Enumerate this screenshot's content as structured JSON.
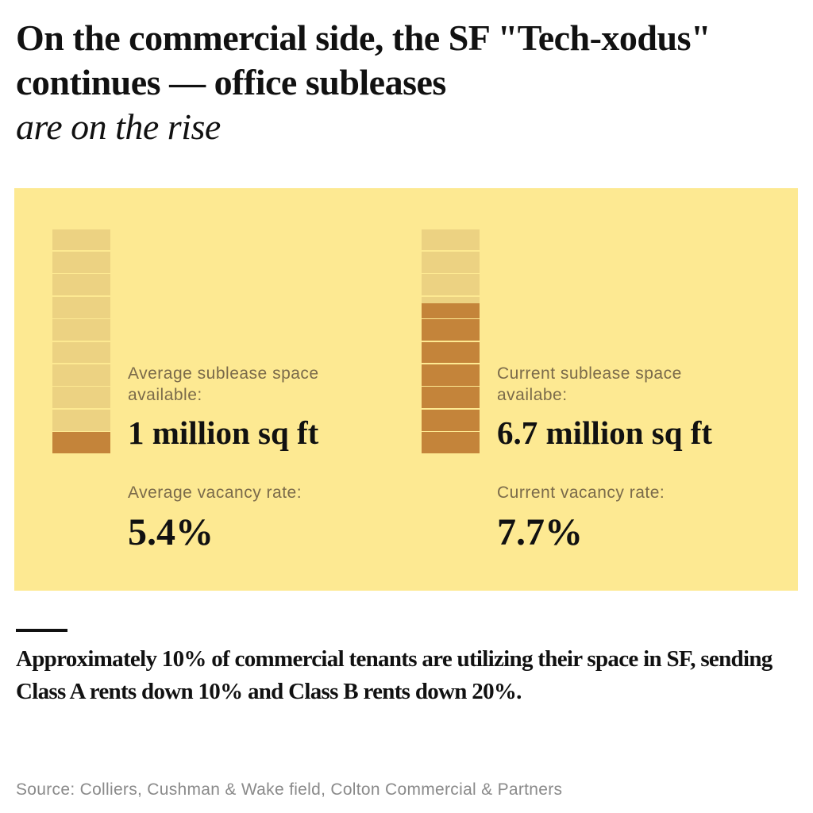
{
  "title": {
    "bold": "On the commercial side, the SF \"Tech-xodus\" continues — office subleases",
    "italic": "are on the rise"
  },
  "colors": {
    "background": "#fde992",
    "empty_segment": "#ecd282",
    "filled_segment": "#c4843a"
  },
  "chart_data": {
    "type": "bar",
    "style": "stacked-unit pictogram, 10 segments of 1 million sq ft each",
    "unit": "million sq ft",
    "scale_max": 10,
    "series": [
      {
        "values": [
          1
        ],
        "label": "Average sublease space available:",
        "value_text": "1 million sq ft",
        "rate_label": "Average vacancy rate:",
        "rate_value": "5.4%"
      },
      {
        "values": [
          6.7
        ],
        "label": "Current sublease space availabe:",
        "value_text": "6.7 million sq ft",
        "rate_label": "Current vacancy rate:",
        "rate_value": "7.7%"
      }
    ]
  },
  "note": "Approximately 10% of commercial tenants are utilizing their space in SF, sending Class A rents down 10% and Class B rents down 20%.",
  "source": "Source: Colliers, Cushman & Wake field, Colton Commercial & Partners"
}
